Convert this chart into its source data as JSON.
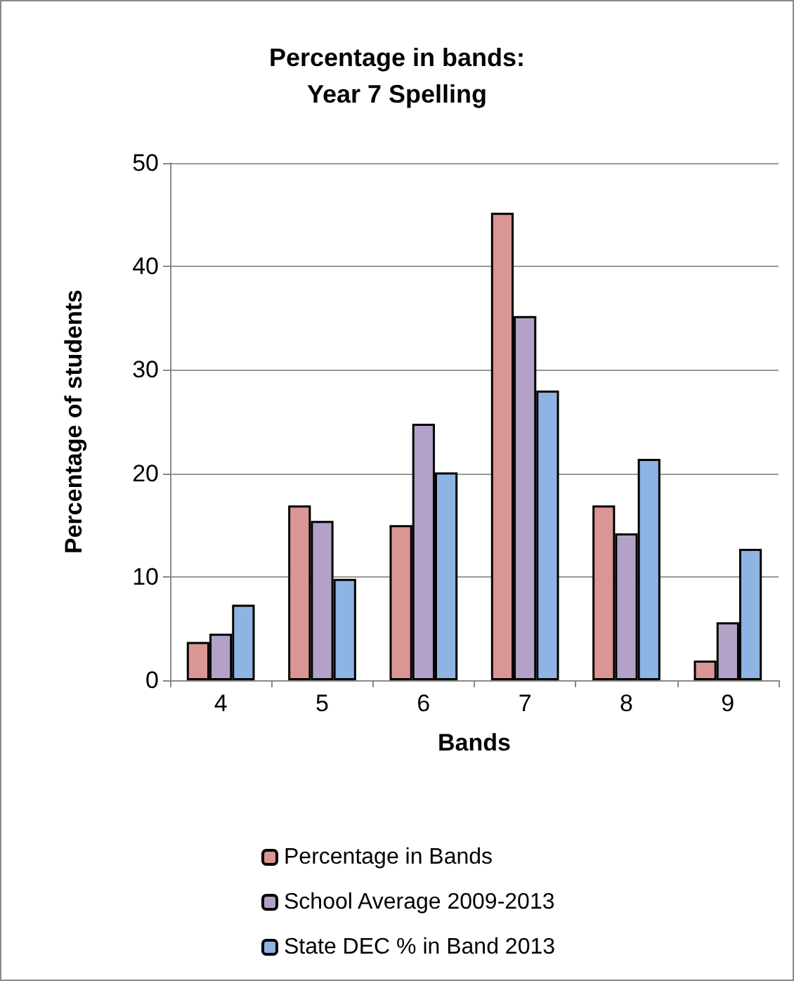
{
  "chart_data": {
    "type": "bar",
    "title": "Percentage in bands:\nYear 7 Spelling",
    "xlabel": "Bands",
    "ylabel": "Percentage of students",
    "categories": [
      "4",
      "5",
      "6",
      "7",
      "8",
      "9"
    ],
    "series": [
      {
        "name": "Percentage in Bands",
        "color": "#d99694",
        "values": [
          3.7,
          16.9,
          15.0,
          45.2,
          16.9,
          1.9
        ]
      },
      {
        "name": "School Average 2009-2013",
        "color": "#b3a2c7",
        "values": [
          4.5,
          15.4,
          24.8,
          35.2,
          14.2,
          5.6
        ]
      },
      {
        "name": "State DEC % in Band 2013",
        "color": "#8eb4e3",
        "values": [
          7.3,
          9.8,
          20.1,
          28.0,
          21.4,
          12.7
        ]
      }
    ],
    "ylim": [
      0,
      50
    ],
    "yticks": [
      0,
      10,
      20,
      30,
      40,
      50
    ],
    "grid": "y",
    "legend": "bottom"
  }
}
